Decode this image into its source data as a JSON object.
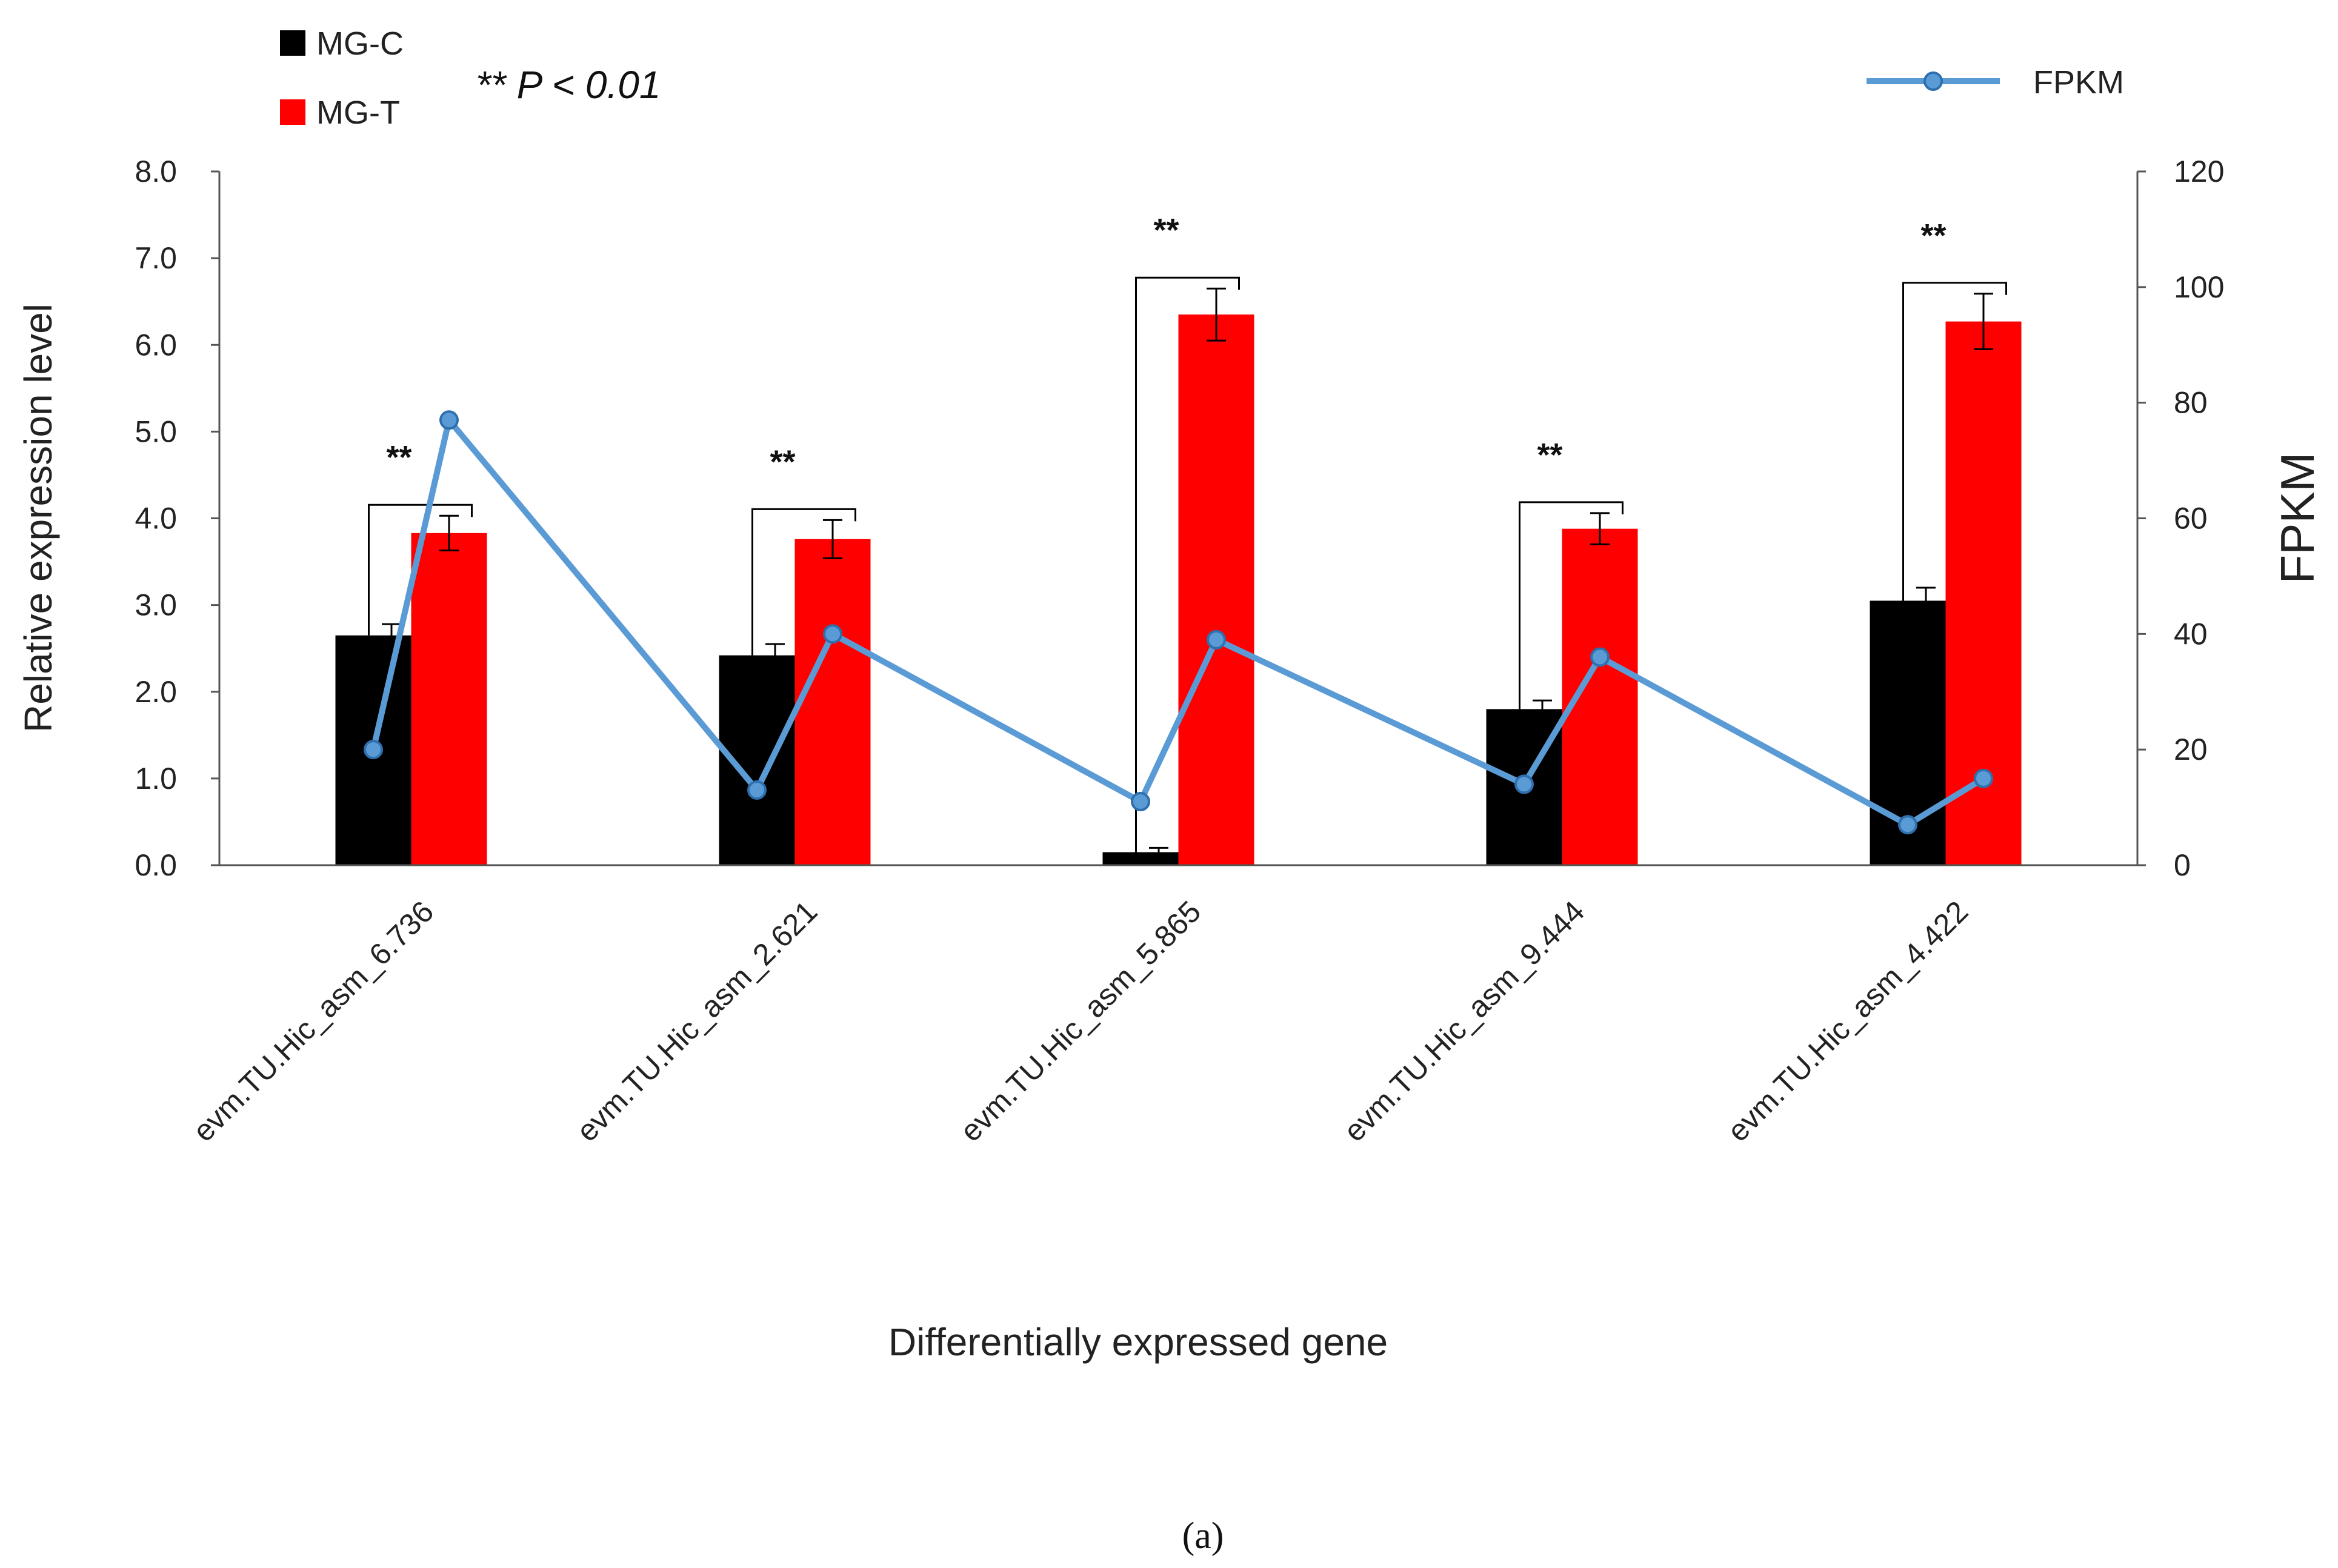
{
  "chart_data": {
    "type": "bar",
    "categories": [
      "evm.TU.Hic_asm_6.736",
      "evm.TU.Hic_asm_2.621",
      "evm.TU.Hic_asm_5.865",
      "evm.TU.Hic_asm_9.444",
      "evm.TU.Hic_asm_4.422"
    ],
    "series": [
      {
        "name": "MG-C",
        "color": "#000000",
        "values": [
          2.65,
          2.42,
          0.15,
          1.8,
          3.05
        ],
        "errors": [
          0.13,
          0.13,
          0.05,
          0.1,
          0.15
        ]
      },
      {
        "name": "MG-T",
        "color": "#ff0000",
        "values": [
          3.83,
          3.76,
          6.35,
          3.88,
          6.27
        ],
        "errors": [
          0.2,
          0.22,
          0.3,
          0.18,
          0.32
        ]
      }
    ],
    "line_series": {
      "name": "FPKM",
      "color": "#5b9bd5",
      "points": [
        [
          0,
          20
        ],
        [
          0,
          77
        ],
        [
          1,
          13
        ],
        [
          1,
          40
        ],
        [
          2,
          11
        ],
        [
          2,
          39
        ],
        [
          3,
          14
        ],
        [
          3,
          36
        ],
        [
          4,
          7
        ],
        [
          4,
          15
        ]
      ]
    },
    "significance": {
      "marker": "**",
      "note_prefix": "** ",
      "note_text": "P < 0.01"
    },
    "xlabel": "Differentially expressed gene",
    "ylabel": "Relative expression level",
    "y2label": "FPKM",
    "ylim": [
      0,
      8
    ],
    "yticks": [
      "0.0",
      "1.0",
      "2.0",
      "3.0",
      "4.0",
      "5.0",
      "6.0",
      "7.0",
      "8.0"
    ],
    "y2lim": [
      0,
      120
    ],
    "y2ticks": [
      "0",
      "20",
      "40",
      "60",
      "80",
      "100",
      "120"
    ],
    "legend_position": "top",
    "grid": false
  },
  "caption": "(a)"
}
